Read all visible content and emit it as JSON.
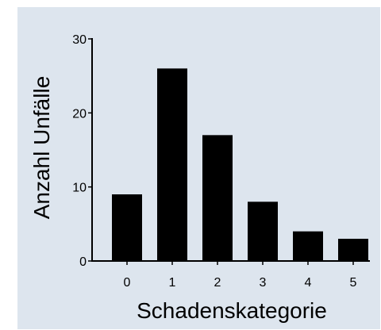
{
  "chart_data": {
    "type": "bar",
    "categories": [
      "0",
      "1",
      "2",
      "3",
      "4",
      "5"
    ],
    "values": [
      9,
      26,
      17,
      8,
      4,
      3
    ],
    "title": "",
    "xlabel": "Schadenskategorie",
    "ylabel": "Anzahl Unfälle",
    "ylim": [
      0,
      30
    ],
    "yticks": [
      "0",
      "10",
      "20",
      "30"
    ],
    "grid": false,
    "bar_color": "#000000",
    "background_color": "#dde5ee"
  }
}
